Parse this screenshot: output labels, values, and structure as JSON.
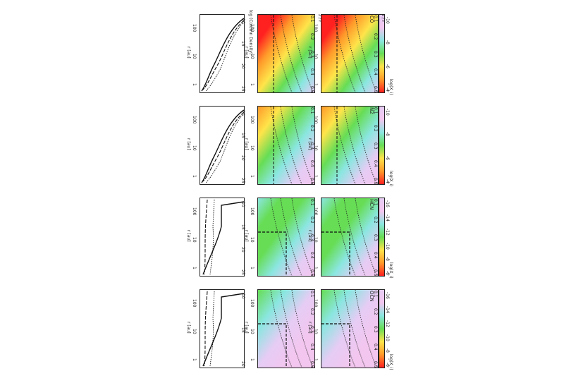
{
  "figure": {
    "top_axis_label": "log (Column Density)",
    "radius_axis_label": "r [au]",
    "zr_axis_label": "z / r",
    "colorbar_label": "log(X_i)"
  },
  "molecules": [
    {
      "name": "CO",
      "ticks": [
        "-10",
        "-8",
        "-6",
        "-4"
      ],
      "density_ticks": [
        "10",
        "15",
        "20",
        "25"
      ]
    },
    {
      "name": "N2",
      "ticks": [
        "-10",
        "-8",
        "-6",
        "-4"
      ],
      "density_ticks": [
        "10",
        "15",
        "20",
        "25"
      ]
    },
    {
      "name": "HCN",
      "ticks": [
        "-16",
        "-14",
        "-12",
        "-10",
        "-8",
        "-6"
      ],
      "density_ticks": [
        "10",
        "15",
        "20",
        "25"
      ]
    },
    {
      "name": "OCN",
      "ticks": [
        "-16",
        "-14",
        "-12",
        "-10",
        "-8",
        "-6"
      ],
      "density_ticks": [
        "10",
        "15",
        "20"
      ]
    }
  ],
  "radius_ticks": [
    "100",
    "10",
    "1"
  ],
  "zr_ticks": [
    "0.1",
    "0.2",
    "0.3",
    "0.4",
    "0.5"
  ],
  "colors": {
    "red": "#ff2020",
    "orange": "#ff9a2a",
    "yellow": "#ffe44a",
    "green": "#66dd55",
    "cyan": "#8ae6e0",
    "lavender": "#e6ccf4",
    "pink": "#f3c6ef"
  }
}
